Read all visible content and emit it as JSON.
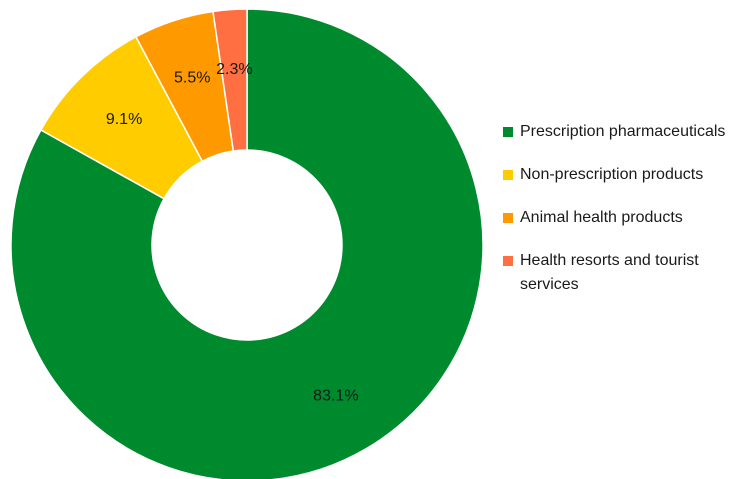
{
  "chart_data": {
    "type": "pie",
    "donut": true,
    "title": "",
    "legend_position": "right",
    "slices": [
      {
        "label": "Prescription pharmaceuticals",
        "value": 83.1,
        "value_label": "83.1%",
        "color": "#008a2e"
      },
      {
        "label": "Non-prescription products",
        "value": 9.1,
        "value_label": "9.1%",
        "color": "#ffcc00"
      },
      {
        "label": "Animal health products",
        "value": 5.5,
        "value_label": "5.5%",
        "color": "#ff9900"
      },
      {
        "label": "Health resorts and tourist services",
        "value": 2.3,
        "value_label": "2.3%",
        "color": "#ff6f42"
      }
    ]
  }
}
